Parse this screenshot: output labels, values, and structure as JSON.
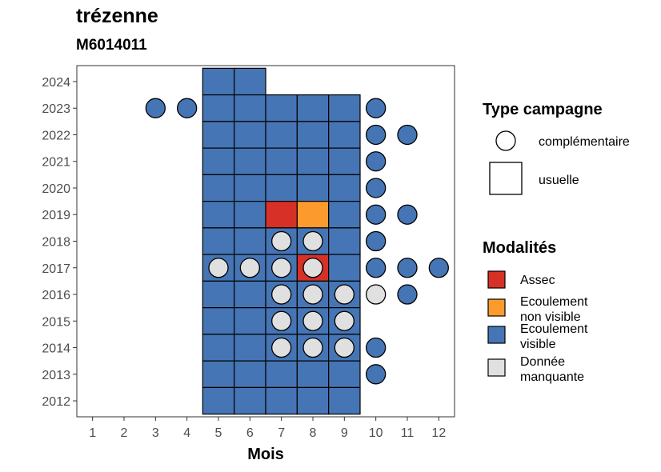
{
  "header": {
    "title": "trézenne",
    "subtitle": "M6014011"
  },
  "colors": {
    "Assec": "#d73027",
    "Ecoulement non visible": "#fd9a2e",
    "Ecoulement visible": "#4575b4",
    "Donnée manquante": "#e0e0e0"
  },
  "chart_data": {
    "type": "heatmap",
    "xlabel": "Mois",
    "ylabel": "",
    "x_ticks": [
      1,
      2,
      3,
      4,
      5,
      6,
      7,
      8,
      9,
      10,
      11,
      12
    ],
    "y_ticks": [
      2012,
      2013,
      2014,
      2015,
      2016,
      2017,
      2018,
      2019,
      2020,
      2021,
      2022,
      2023,
      2024
    ],
    "xlim": [
      0.5,
      12.5
    ],
    "ylim": [
      2011.4,
      2024.6
    ],
    "legend_placement": "right",
    "legends": [
      {
        "title": "Type campagne",
        "items": [
          {
            "label": "complémentaire",
            "shape": "circle"
          },
          {
            "label": "usuelle",
            "shape": "square"
          }
        ]
      },
      {
        "title": "Modalités",
        "items": [
          {
            "label": "Assec",
            "lines": [
              "Assec"
            ]
          },
          {
            "label": "Ecoulement non visible",
            "lines": [
              "Ecoulement",
              "non visible"
            ]
          },
          {
            "label": "Ecoulement visible",
            "lines": [
              "Ecoulement",
              "visible"
            ]
          },
          {
            "label": "Donnée manquante",
            "lines": [
              "Donnée",
              "manquante"
            ]
          }
        ]
      }
    ],
    "points": [
      {
        "year": 2024,
        "month": 5,
        "type": "usuelle",
        "modalite": "Ecoulement visible"
      },
      {
        "year": 2024,
        "month": 6,
        "type": "usuelle",
        "modalite": "Ecoulement visible"
      },
      {
        "year": 2023,
        "month": 3,
        "type": "complémentaire",
        "modalite": "Ecoulement visible"
      },
      {
        "year": 2023,
        "month": 4,
        "type": "complémentaire",
        "modalite": "Ecoulement visible"
      },
      {
        "year": 2023,
        "month": 5,
        "type": "usuelle",
        "modalite": "Ecoulement visible"
      },
      {
        "year": 2023,
        "month": 6,
        "type": "usuelle",
        "modalite": "Ecoulement visible"
      },
      {
        "year": 2023,
        "month": 7,
        "type": "usuelle",
        "modalite": "Ecoulement visible"
      },
      {
        "year": 2023,
        "month": 8,
        "type": "usuelle",
        "modalite": "Ecoulement visible"
      },
      {
        "year": 2023,
        "month": 9,
        "type": "usuelle",
        "modalite": "Ecoulement visible"
      },
      {
        "year": 2023,
        "month": 10,
        "type": "complémentaire",
        "modalite": "Ecoulement visible"
      },
      {
        "year": 2022,
        "month": 5,
        "type": "usuelle",
        "modalite": "Ecoulement visible"
      },
      {
        "year": 2022,
        "month": 6,
        "type": "usuelle",
        "modalite": "Ecoulement visible"
      },
      {
        "year": 2022,
        "month": 7,
        "type": "usuelle",
        "modalite": "Ecoulement visible"
      },
      {
        "year": 2022,
        "month": 8,
        "type": "usuelle",
        "modalite": "Ecoulement visible"
      },
      {
        "year": 2022,
        "month": 9,
        "type": "usuelle",
        "modalite": "Ecoulement visible"
      },
      {
        "year": 2022,
        "month": 10,
        "type": "complémentaire",
        "modalite": "Ecoulement visible"
      },
      {
        "year": 2022,
        "month": 11,
        "type": "complémentaire",
        "modalite": "Ecoulement visible"
      },
      {
        "year": 2021,
        "month": 5,
        "type": "usuelle",
        "modalite": "Ecoulement visible"
      },
      {
        "year": 2021,
        "month": 6,
        "type": "usuelle",
        "modalite": "Ecoulement visible"
      },
      {
        "year": 2021,
        "month": 7,
        "type": "usuelle",
        "modalite": "Ecoulement visible"
      },
      {
        "year": 2021,
        "month": 8,
        "type": "usuelle",
        "modalite": "Ecoulement visible"
      },
      {
        "year": 2021,
        "month": 9,
        "type": "usuelle",
        "modalite": "Ecoulement visible"
      },
      {
        "year": 2021,
        "month": 10,
        "type": "complémentaire",
        "modalite": "Ecoulement visible"
      },
      {
        "year": 2020,
        "month": 5,
        "type": "usuelle",
        "modalite": "Ecoulement visible"
      },
      {
        "year": 2020,
        "month": 6,
        "type": "usuelle",
        "modalite": "Ecoulement visible"
      },
      {
        "year": 2020,
        "month": 7,
        "type": "usuelle",
        "modalite": "Ecoulement visible"
      },
      {
        "year": 2020,
        "month": 8,
        "type": "usuelle",
        "modalite": "Ecoulement visible"
      },
      {
        "year": 2020,
        "month": 9,
        "type": "usuelle",
        "modalite": "Ecoulement visible"
      },
      {
        "year": 2020,
        "month": 10,
        "type": "complémentaire",
        "modalite": "Ecoulement visible"
      },
      {
        "year": 2019,
        "month": 5,
        "type": "usuelle",
        "modalite": "Ecoulement visible"
      },
      {
        "year": 2019,
        "month": 6,
        "type": "usuelle",
        "modalite": "Ecoulement visible"
      },
      {
        "year": 2019,
        "month": 7,
        "type": "usuelle",
        "modalite": "Assec"
      },
      {
        "year": 2019,
        "month": 8,
        "type": "usuelle",
        "modalite": "Ecoulement non visible"
      },
      {
        "year": 2019,
        "month": 9,
        "type": "usuelle",
        "modalite": "Ecoulement visible"
      },
      {
        "year": 2019,
        "month": 10,
        "type": "complémentaire",
        "modalite": "Ecoulement visible"
      },
      {
        "year": 2019,
        "month": 11,
        "type": "complémentaire",
        "modalite": "Ecoulement visible"
      },
      {
        "year": 2018,
        "month": 5,
        "type": "usuelle",
        "modalite": "Ecoulement visible"
      },
      {
        "year": 2018,
        "month": 6,
        "type": "usuelle",
        "modalite": "Ecoulement visible"
      },
      {
        "year": 2018,
        "month": 7,
        "type": "usuelle",
        "modalite": "Ecoulement visible"
      },
      {
        "year": 2018,
        "month": 8,
        "type": "usuelle",
        "modalite": "Ecoulement visible"
      },
      {
        "year": 2018,
        "month": 9,
        "type": "usuelle",
        "modalite": "Ecoulement visible"
      },
      {
        "year": 2018,
        "month": 7,
        "type": "complémentaire",
        "modalite": "Donnée manquante"
      },
      {
        "year": 2018,
        "month": 8,
        "type": "complémentaire",
        "modalite": "Donnée manquante"
      },
      {
        "year": 2018,
        "month": 10,
        "type": "complémentaire",
        "modalite": "Ecoulement visible"
      },
      {
        "year": 2017,
        "month": 5,
        "type": "usuelle",
        "modalite": "Ecoulement visible"
      },
      {
        "year": 2017,
        "month": 6,
        "type": "usuelle",
        "modalite": "Ecoulement visible"
      },
      {
        "year": 2017,
        "month": 7,
        "type": "usuelle",
        "modalite": "Ecoulement visible"
      },
      {
        "year": 2017,
        "month": 8,
        "type": "usuelle",
        "modalite": "Assec"
      },
      {
        "year": 2017,
        "month": 9,
        "type": "usuelle",
        "modalite": "Ecoulement visible"
      },
      {
        "year": 2017,
        "month": 5,
        "type": "complémentaire",
        "modalite": "Donnée manquante"
      },
      {
        "year": 2017,
        "month": 6,
        "type": "complémentaire",
        "modalite": "Donnée manquante"
      },
      {
        "year": 2017,
        "month": 7,
        "type": "complémentaire",
        "modalite": "Donnée manquante"
      },
      {
        "year": 2017,
        "month": 8,
        "type": "complémentaire",
        "modalite": "Donnée manquante"
      },
      {
        "year": 2017,
        "month": 10,
        "type": "complémentaire",
        "modalite": "Ecoulement visible"
      },
      {
        "year": 2017,
        "month": 11,
        "type": "complémentaire",
        "modalite": "Ecoulement visible"
      },
      {
        "year": 2017,
        "month": 12,
        "type": "complémentaire",
        "modalite": "Ecoulement visible"
      },
      {
        "year": 2016,
        "month": 5,
        "type": "usuelle",
        "modalite": "Ecoulement visible"
      },
      {
        "year": 2016,
        "month": 6,
        "type": "usuelle",
        "modalite": "Ecoulement visible"
      },
      {
        "year": 2016,
        "month": 7,
        "type": "usuelle",
        "modalite": "Ecoulement visible"
      },
      {
        "year": 2016,
        "month": 8,
        "type": "usuelle",
        "modalite": "Ecoulement visible"
      },
      {
        "year": 2016,
        "month": 9,
        "type": "usuelle",
        "modalite": "Ecoulement visible"
      },
      {
        "year": 2016,
        "month": 7,
        "type": "complémentaire",
        "modalite": "Donnée manquante"
      },
      {
        "year": 2016,
        "month": 8,
        "type": "complémentaire",
        "modalite": "Donnée manquante"
      },
      {
        "year": 2016,
        "month": 9,
        "type": "complémentaire",
        "modalite": "Donnée manquante"
      },
      {
        "year": 2016,
        "month": 10,
        "type": "complémentaire",
        "modalite": "Donnée manquante"
      },
      {
        "year": 2016,
        "month": 11,
        "type": "complémentaire",
        "modalite": "Ecoulement visible"
      },
      {
        "year": 2015,
        "month": 5,
        "type": "usuelle",
        "modalite": "Ecoulement visible"
      },
      {
        "year": 2015,
        "month": 6,
        "type": "usuelle",
        "modalite": "Ecoulement visible"
      },
      {
        "year": 2015,
        "month": 7,
        "type": "usuelle",
        "modalite": "Ecoulement visible"
      },
      {
        "year": 2015,
        "month": 8,
        "type": "usuelle",
        "modalite": "Ecoulement visible"
      },
      {
        "year": 2015,
        "month": 9,
        "type": "usuelle",
        "modalite": "Ecoulement visible"
      },
      {
        "year": 2015,
        "month": 7,
        "type": "complémentaire",
        "modalite": "Donnée manquante"
      },
      {
        "year": 2015,
        "month": 8,
        "type": "complémentaire",
        "modalite": "Donnée manquante"
      },
      {
        "year": 2015,
        "month": 9,
        "type": "complémentaire",
        "modalite": "Donnée manquante"
      },
      {
        "year": 2014,
        "month": 5,
        "type": "usuelle",
        "modalite": "Ecoulement visible"
      },
      {
        "year": 2014,
        "month": 6,
        "type": "usuelle",
        "modalite": "Ecoulement visible"
      },
      {
        "year": 2014,
        "month": 7,
        "type": "usuelle",
        "modalite": "Ecoulement visible"
      },
      {
        "year": 2014,
        "month": 8,
        "type": "usuelle",
        "modalite": "Ecoulement visible"
      },
      {
        "year": 2014,
        "month": 9,
        "type": "usuelle",
        "modalite": "Ecoulement visible"
      },
      {
        "year": 2014,
        "month": 7,
        "type": "complémentaire",
        "modalite": "Donnée manquante"
      },
      {
        "year": 2014,
        "month": 8,
        "type": "complémentaire",
        "modalite": "Donnée manquante"
      },
      {
        "year": 2014,
        "month": 9,
        "type": "complémentaire",
        "modalite": "Donnée manquante"
      },
      {
        "year": 2014,
        "month": 10,
        "type": "complémentaire",
        "modalite": "Ecoulement visible"
      },
      {
        "year": 2013,
        "month": 5,
        "type": "usuelle",
        "modalite": "Ecoulement visible"
      },
      {
        "year": 2013,
        "month": 6,
        "type": "usuelle",
        "modalite": "Ecoulement visible"
      },
      {
        "year": 2013,
        "month": 7,
        "type": "usuelle",
        "modalite": "Ecoulement visible"
      },
      {
        "year": 2013,
        "month": 8,
        "type": "usuelle",
        "modalite": "Ecoulement visible"
      },
      {
        "year": 2013,
        "month": 9,
        "type": "usuelle",
        "modalite": "Ecoulement visible"
      },
      {
        "year": 2013,
        "month": 10,
        "type": "complémentaire",
        "modalite": "Ecoulement visible"
      },
      {
        "year": 2012,
        "month": 5,
        "type": "usuelle",
        "modalite": "Ecoulement visible"
      },
      {
        "year": 2012,
        "month": 6,
        "type": "usuelle",
        "modalite": "Ecoulement visible"
      },
      {
        "year": 2012,
        "month": 7,
        "type": "usuelle",
        "modalite": "Ecoulement visible"
      },
      {
        "year": 2012,
        "month": 8,
        "type": "usuelle",
        "modalite": "Ecoulement visible"
      },
      {
        "year": 2012,
        "month": 9,
        "type": "usuelle",
        "modalite": "Ecoulement visible"
      }
    ]
  }
}
